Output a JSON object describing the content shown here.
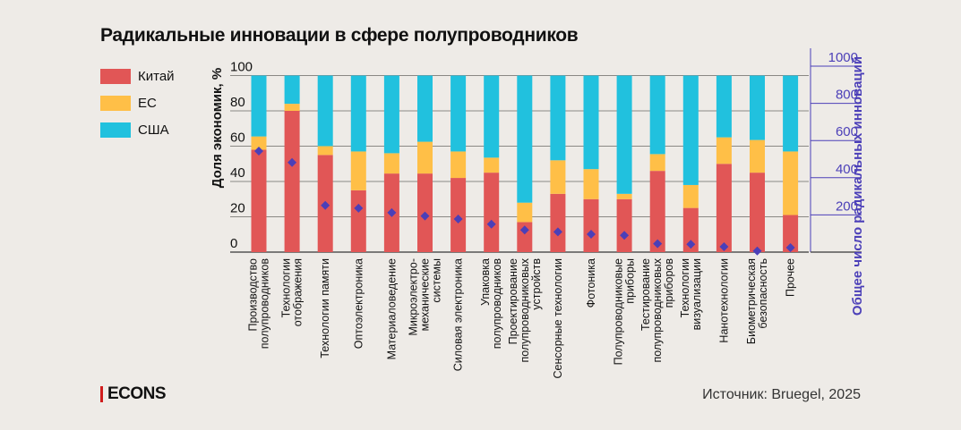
{
  "brand": "ECONS",
  "source": "Источник: Bruegel, 2025",
  "colors": {
    "china": "#e15656",
    "eu": "#ffbf47",
    "usa": "#21c1de",
    "diamond": "#4b3fb8",
    "grid": "#8a8884",
    "right_axis": "#4b3fb8"
  },
  "chart_data": {
    "type": "bar",
    "stacked": true,
    "title": "Радикальные инновации в сфере полупроводников",
    "ylabel": "Доля экономик, %",
    "ylabel_right": "Общее число радикальных инноваций",
    "ylim": [
      0,
      100
    ],
    "ylim_right": [
      0,
      1000
    ],
    "yticks": [
      0,
      20,
      40,
      60,
      80,
      100
    ],
    "yticks_right": [
      200,
      400,
      600,
      800,
      1000
    ],
    "grid": true,
    "legend_position": "top-left",
    "categories": [
      [
        "Производство",
        "полупроводников"
      ],
      [
        "Технологии",
        "отображения"
      ],
      [
        "Технологии памяти"
      ],
      [
        "Оптоэлектроника"
      ],
      [
        "Материаловедение"
      ],
      [
        "Микроэлектро-",
        "механические",
        "системы"
      ],
      [
        "Силовая электроника"
      ],
      [
        "Упаковка",
        "полупроводников"
      ],
      [
        "Проектирование",
        "полупроводниковых",
        "устройств"
      ],
      [
        "Сенсорные технологии"
      ],
      [
        "Фотоника"
      ],
      [
        "Полупроводниковые",
        "приборы"
      ],
      [
        "Тестирование",
        "полупроводниковых",
        "приборов"
      ],
      [
        "Технологии",
        "визуализации"
      ],
      [
        "Нанотехнологии"
      ],
      [
        "Биометрическая",
        "безопасность"
      ],
      [
        "Прочее"
      ]
    ],
    "series": [
      {
        "name": "Китай",
        "values": [
          58,
          80,
          55,
          35,
          44.5,
          44.5,
          42,
          45,
          17,
          33,
          30,
          30,
          46,
          25,
          50,
          45,
          21
        ]
      },
      {
        "name": "ЕС",
        "values": [
          7.5,
          4,
          5,
          22,
          11.5,
          18,
          15,
          8.5,
          11,
          19,
          17,
          3,
          9.5,
          13,
          15,
          18.5,
          36
        ]
      },
      {
        "name": "США",
        "values": [
          34.5,
          16,
          40,
          43,
          44,
          37.5,
          43,
          46.5,
          72,
          48,
          53,
          67,
          44.5,
          62,
          35,
          36.5,
          43
        ]
      }
    ],
    "total_innovations": {
      "name": "Общее число радикальных инноваций",
      "axis": "right",
      "marker": "diamond",
      "values": [
        543,
        482,
        251,
        236,
        212,
        194,
        178,
        150,
        119,
        109,
        96,
        90,
        45,
        42,
        29,
        6,
        24
      ]
    }
  }
}
